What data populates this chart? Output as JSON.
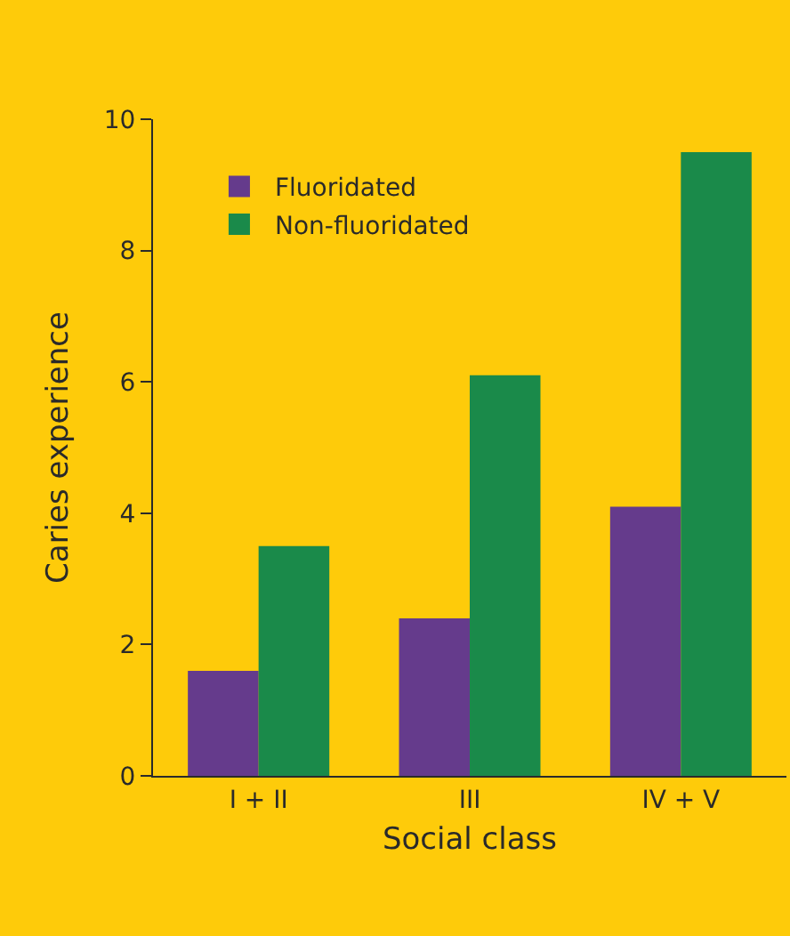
{
  "chart_data": {
    "type": "bar",
    "xlabel": "Social class",
    "ylabel": "Caries experience",
    "categories": [
      "I + II",
      "III",
      "IV + V"
    ],
    "series": [
      {
        "name": "Fluoridated",
        "color": "#653b8c",
        "values": [
          1.6,
          2.4,
          4.1
        ]
      },
      {
        "name": "Non-fluoridated",
        "color": "#1a8a4a",
        "values": [
          3.5,
          6.1,
          9.5
        ]
      }
    ],
    "ylim": [
      0,
      10
    ],
    "yticks": [
      0,
      2,
      4,
      6,
      8,
      10
    ],
    "grid": false,
    "legend": "top left"
  }
}
